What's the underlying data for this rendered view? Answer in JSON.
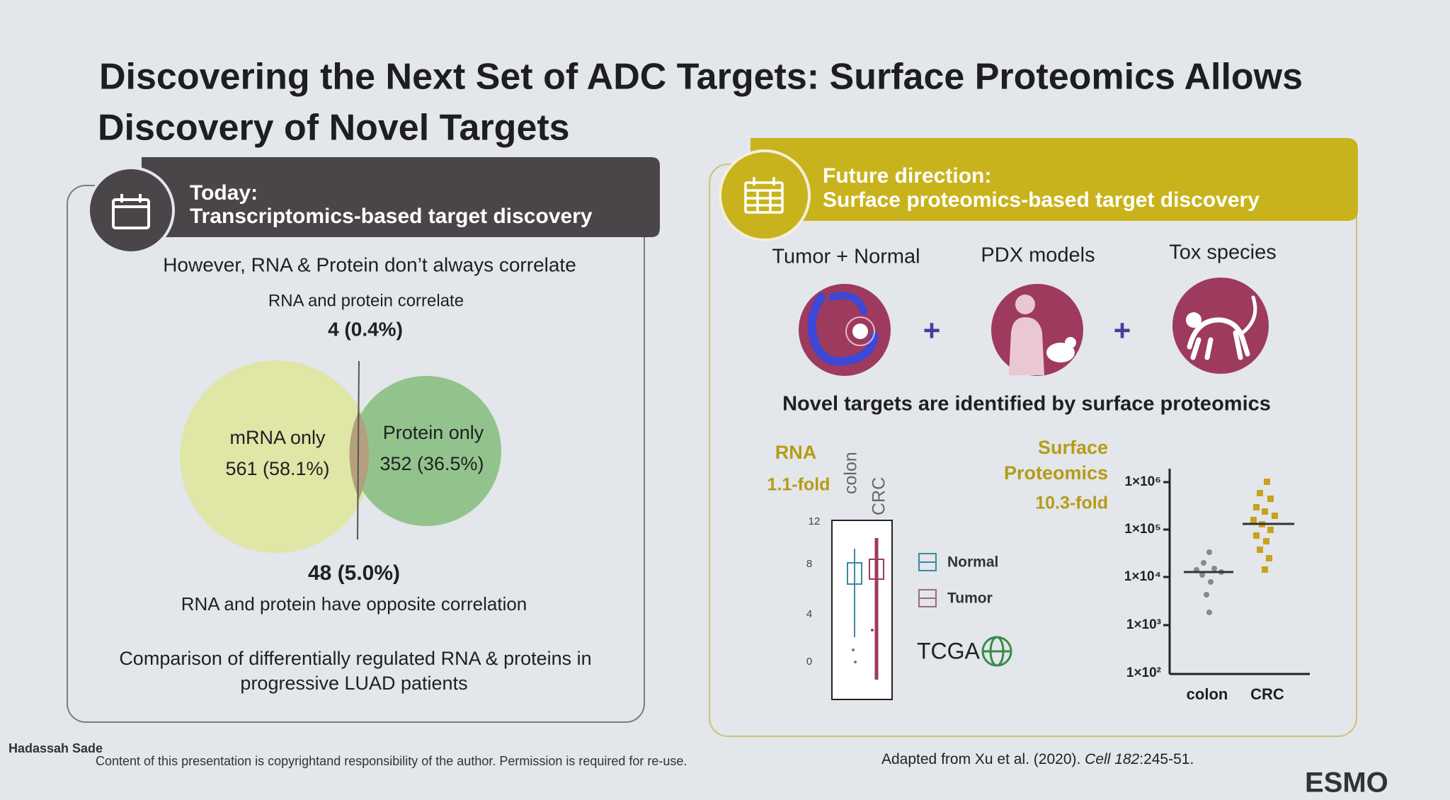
{
  "title_line1": "Discovering the Next Set of ADC Targets: Surface Proteomics Allows",
  "title_line2": "Discovery of Novel Targets",
  "left_panel": {
    "header_line1": "Today:",
    "header_line2": "Transcriptomics-based target discovery",
    "subtitle": "However, RNA & Protein don’t always correlate",
    "correlate_label": "RNA and protein correlate",
    "correlate_value": "4 (0.4%)",
    "venn": {
      "left_label": "mRNA only",
      "left_value": "561 (58.1%)",
      "right_label": "Protein only",
      "right_value": "352 (36.5%)"
    },
    "opposite_value": "48 (5.0%)",
    "opposite_label": "RNA and protein have opposite correlation",
    "caption_line1": "Comparison of differentially regulated RNA & proteins in",
    "caption_line2": "progressive LUAD patients"
  },
  "right_panel": {
    "header_line1": "Future direction:",
    "header_line2": "Surface proteomics-based target discovery",
    "sources": [
      "Tumor + Normal",
      "PDX models",
      "Tox species"
    ],
    "plus": "+",
    "statement": "Novel targets are identified by surface proteomics",
    "rna": {
      "label": "RNA",
      "fold": "1.1-fold",
      "columns": [
        "colon",
        "CRC"
      ],
      "yticks": [
        "12",
        "8",
        "4",
        "0"
      ],
      "legend": [
        "Normal",
        "Tumor"
      ],
      "source": "TCGA"
    },
    "proteomics": {
      "label_line1": "Surface",
      "label_line2": "Proteomics",
      "fold": "10.3-fold",
      "yticks": [
        "1×10⁶",
        "1×10⁵",
        "1×10⁴",
        "1×10³",
        "1×10²"
      ],
      "categories": [
        "colon",
        "CRC"
      ]
    }
  },
  "footer": {
    "author": "Hadassah Sade",
    "copyright": "Content of this presentation is copyrightand responsibility of the author. Permission is required for re-use.",
    "citation_pre": "Adapted from Xu et al. (2020). ",
    "citation_journal": "Cell",
    "citation_volume": " 182",
    "citation_pages": ":245-51.",
    "logo": "ESMO"
  }
}
